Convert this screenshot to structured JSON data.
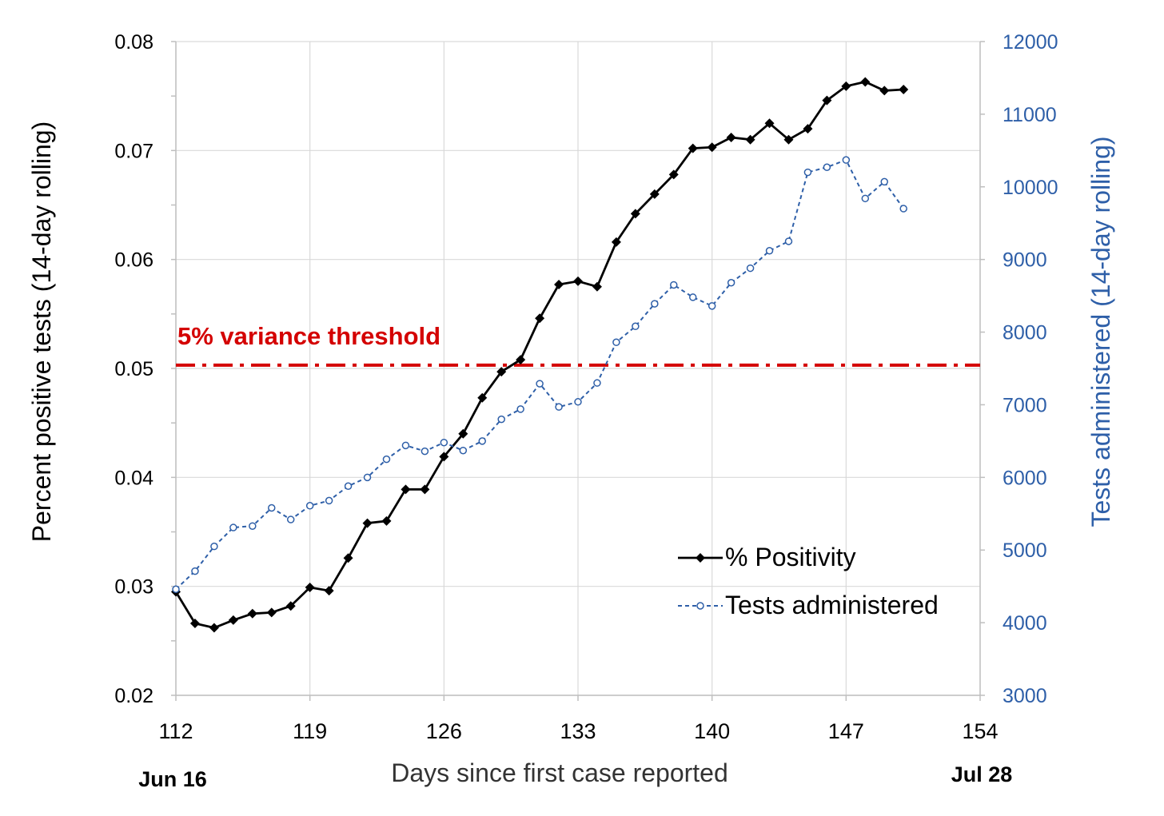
{
  "chart_data": {
    "type": "line",
    "x": [
      112,
      113,
      114,
      115,
      116,
      117,
      118,
      119,
      120,
      121,
      122,
      123,
      124,
      125,
      126,
      127,
      128,
      129,
      130,
      131,
      132,
      133,
      134,
      135,
      136,
      137,
      138,
      139,
      140,
      141,
      142,
      143,
      144,
      145,
      146,
      147,
      148,
      149,
      150
    ],
    "xlabel": "Days since first case reported",
    "xlim": [
      112,
      154
    ],
    "xticks": [
      112,
      119,
      126,
      133,
      140,
      147,
      154
    ],
    "date_labels": {
      "start": "Jun 16",
      "end": "Jul 28"
    },
    "y_left": {
      "label": "Percent positive tests (14-day rolling)",
      "lim": [
        0.02,
        0.08
      ],
      "ticks": [
        "0.02",
        "0.03",
        "0.04",
        "0.05",
        "0.06",
        "0.07",
        "0.08"
      ]
    },
    "y_right": {
      "label": "Tests administered (14-day rolling)",
      "lim": [
        3000,
        12000
      ],
      "ticks": [
        "3000",
        "4000",
        "5000",
        "6000",
        "7000",
        "8000",
        "9000",
        "10000",
        "11000",
        "12000"
      ]
    },
    "series": [
      {
        "name": "% Positivity",
        "axis": "left",
        "color": "#000000",
        "marker": "filled-diamond",
        "values": [
          0.0295,
          0.0266,
          0.0262,
          0.0269,
          0.0275,
          0.0276,
          0.0282,
          0.0299,
          0.0296,
          0.0326,
          0.0358,
          0.036,
          0.0389,
          0.0389,
          0.0419,
          0.044,
          0.0473,
          0.0497,
          0.0508,
          0.0546,
          0.0577,
          0.058,
          0.0575,
          0.0616,
          0.0642,
          0.066,
          0.0678,
          0.0702,
          0.0703,
          0.0712,
          0.071,
          0.0725,
          0.071,
          0.072,
          0.0746,
          0.0759,
          0.0763,
          0.0755,
          0.0756
        ]
      },
      {
        "name": "Tests administered",
        "axis": "right",
        "color": "#2e5fa8",
        "marker": "open-circle",
        "line_style": "dashed",
        "values": [
          4460,
          4710,
          5050,
          5310,
          5330,
          5580,
          5420,
          5610,
          5680,
          5880,
          6000,
          6250,
          6440,
          6360,
          6480,
          6370,
          6500,
          6800,
          6940,
          7290,
          6970,
          7040,
          7300,
          7860,
          8080,
          8390,
          8650,
          8480,
          8360,
          8680,
          8880,
          9120,
          9250,
          10200,
          10270,
          10370,
          9840,
          10070,
          9700
        ]
      }
    ],
    "threshold": {
      "label": "5% variance threshold",
      "value": 0.0503,
      "color": "#d40000"
    },
    "legend_position": "bottom-right",
    "grid": true
  }
}
